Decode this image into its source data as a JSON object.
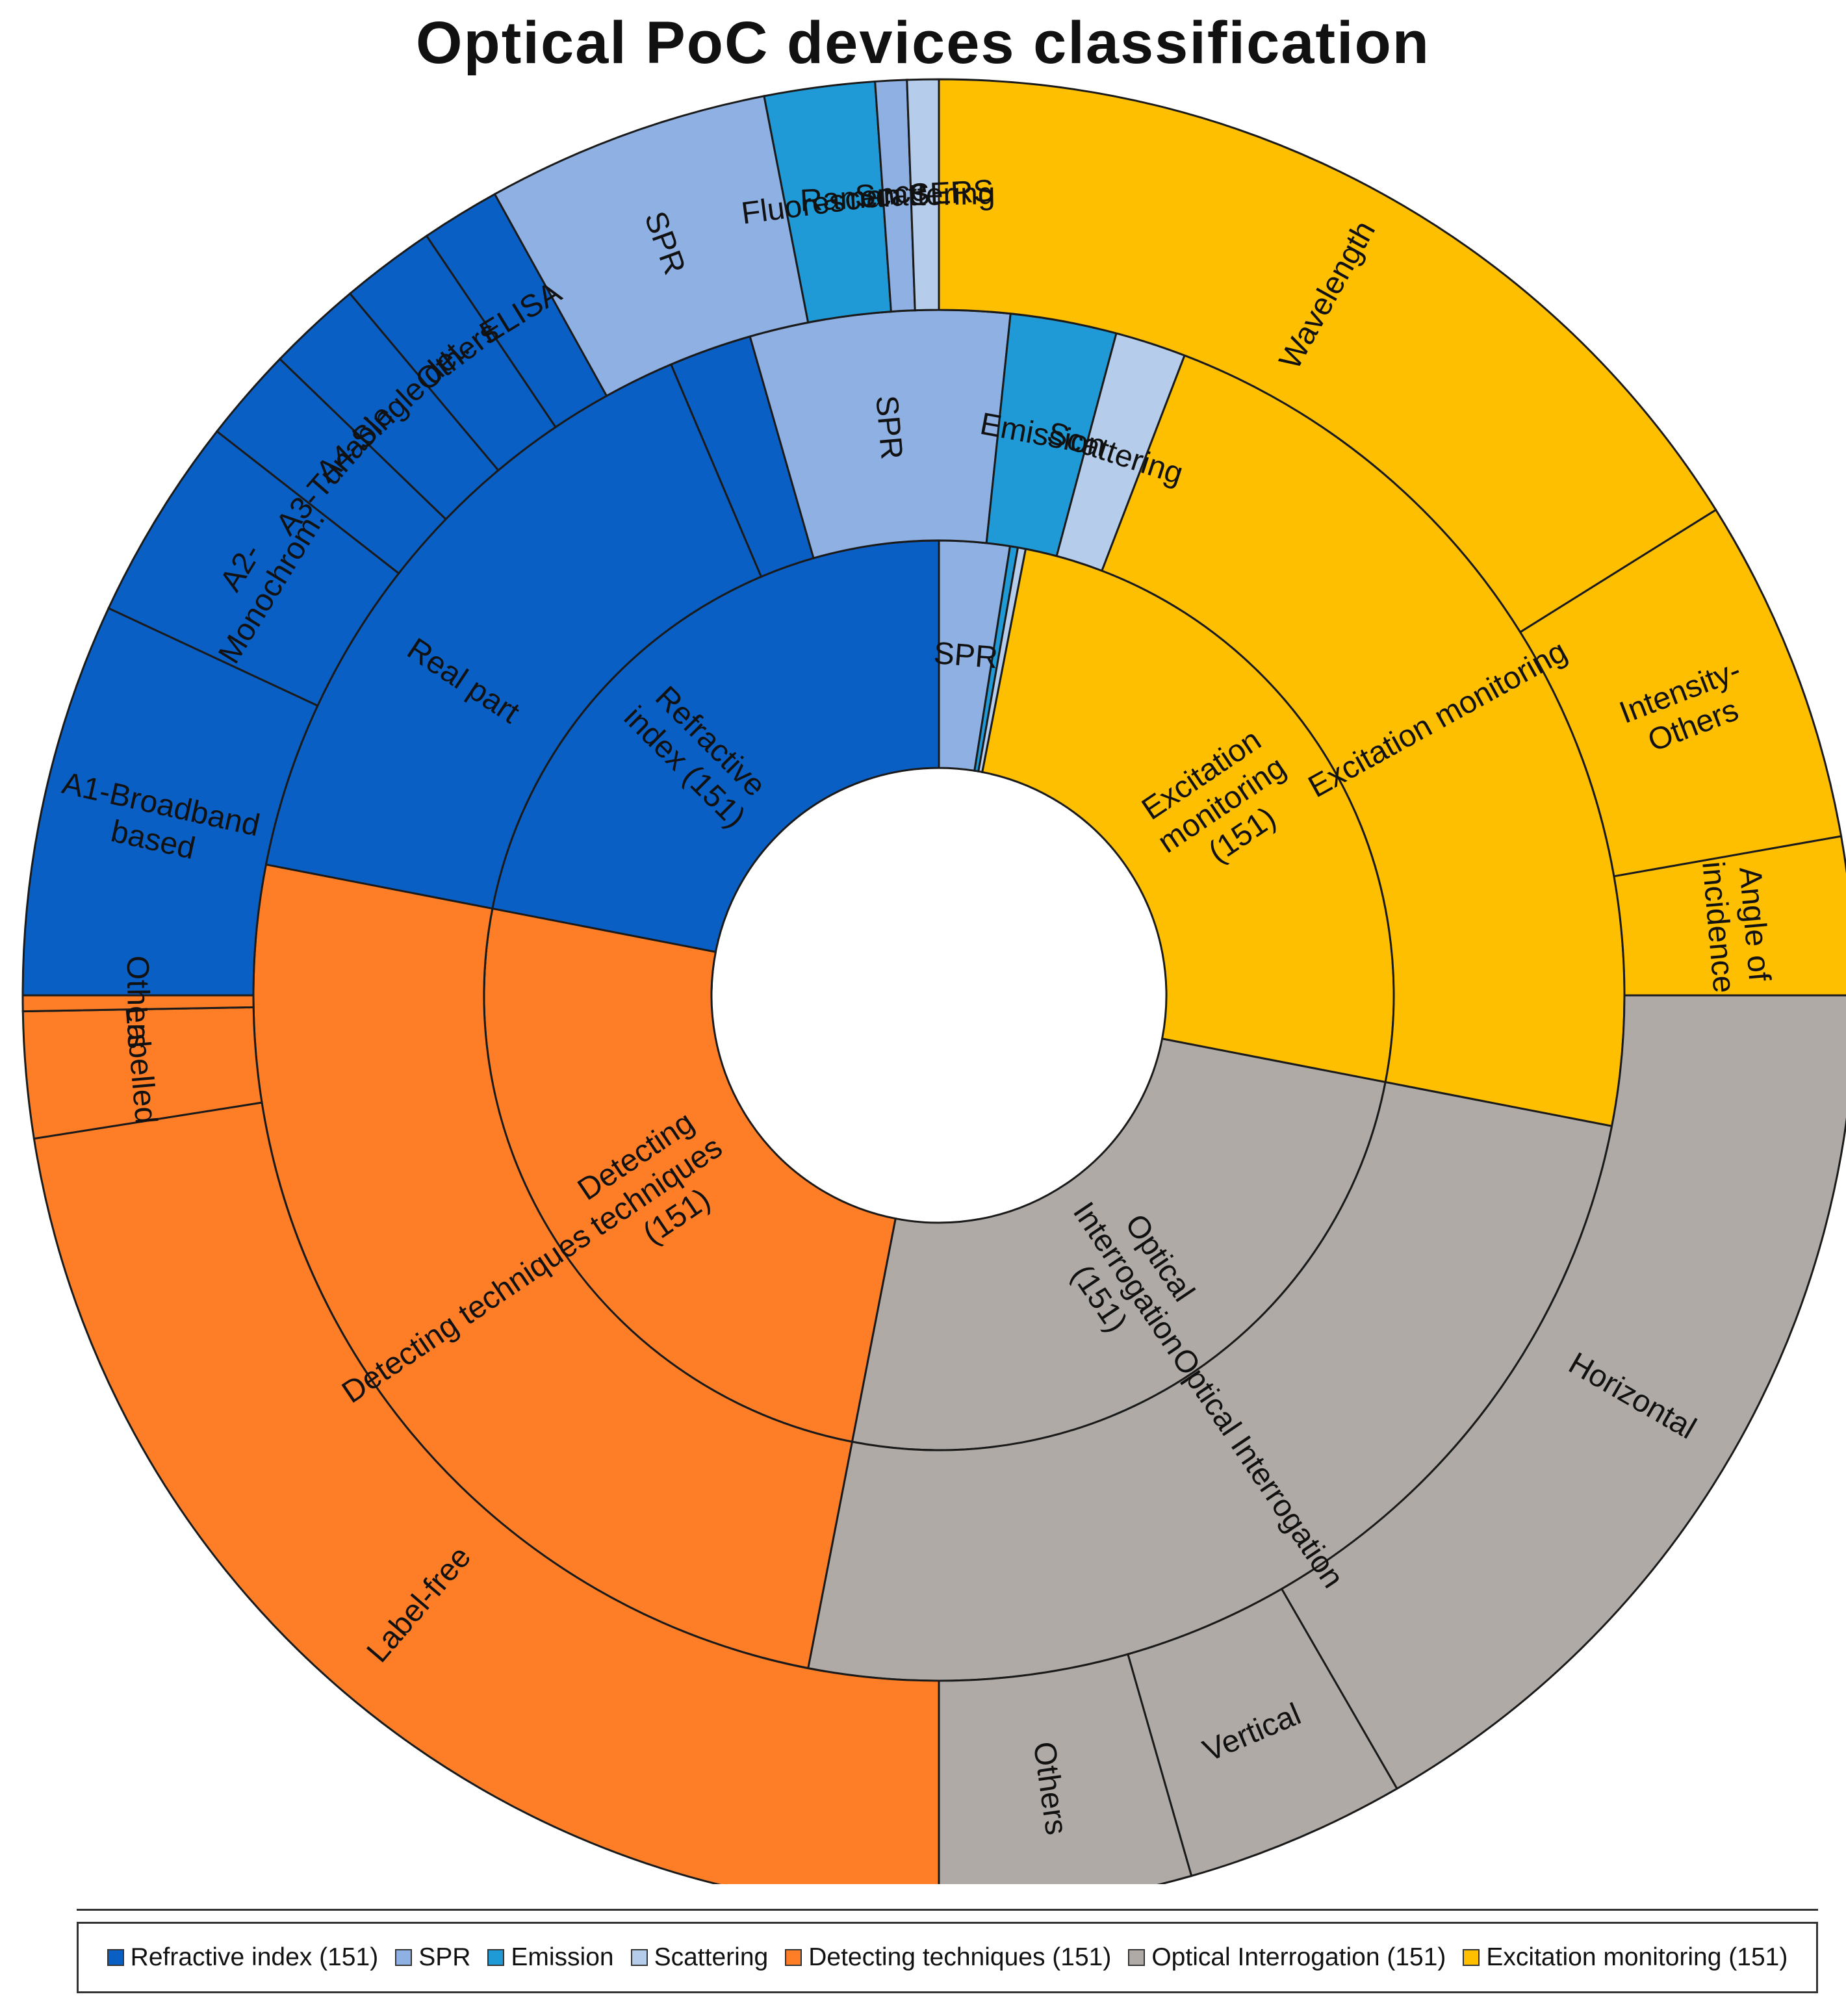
{
  "chart_data": {
    "type": "sunburst",
    "title": "Optical PoC devices classification",
    "rings": [
      {
        "level": 1,
        "segments": [
          {
            "label": "Refractive\nindex (151)",
            "start_deg": 0,
            "end_deg": 90,
            "color": "#0a5fc4"
          },
          {
            "label": "SPR",
            "start_deg": 90,
            "end_deg": 99,
            "color": "#8eb0e2"
          },
          {
            "label": "",
            "start_deg": 99,
            "end_deg": 100,
            "color": "#1f9ad6"
          },
          {
            "label": "",
            "start_deg": 100,
            "end_deg": 101,
            "color": "#b5cdeb"
          },
          {
            "label": "Excitation\nmonitoring\n(151)",
            "start_deg": 101,
            "end_deg": 191,
            "color": "#fdbf00"
          },
          {
            "label": "Optical\nInterrogation\n(151)",
            "start_deg": 191,
            "end_deg": 281,
            "color": "#afaaa6"
          },
          {
            "label": "Detecting\ntechniques\n(151)",
            "start_deg": 281,
            "end_deg": 371,
            "color": "#fd7e27"
          }
        ]
      },
      {
        "level": 2,
        "segments": [
          {
            "label": "Real part",
            "start_deg": 0,
            "end_deg": 67,
            "color": "#0a5fc4"
          },
          {
            "label": "",
            "start_deg": 67,
            "end_deg": 74,
            "color": "#0a5fc4"
          },
          {
            "label": "SPR",
            "start_deg": 74,
            "end_deg": 96,
            "color": "#8eb0e2"
          },
          {
            "label": "Emission",
            "start_deg": 96,
            "end_deg": 105,
            "color": "#1f9ad6"
          },
          {
            "label": "Scattering",
            "start_deg": 105,
            "end_deg": 111,
            "color": "#b5cdeb"
          },
          {
            "label": "Excitation monitoring",
            "start_deg": 111,
            "end_deg": 191,
            "color": "#fdbf00"
          },
          {
            "label": "Optical Interrogation",
            "start_deg": 191,
            "end_deg": 281,
            "color": "#afaaa6"
          },
          {
            "label": "Detecting techniques",
            "start_deg": 281,
            "end_deg": 371,
            "color": "#fd7e27"
          }
        ]
      },
      {
        "level": 3,
        "segments": [
          {
            "label": "A1-Broadband\nbased",
            "start_deg": 0,
            "end_deg": 25,
            "color": "#0a5fc4"
          },
          {
            "label": "A2-\nMonochrom.",
            "start_deg": 25,
            "end_deg": 38,
            "color": "#0a5fc4"
          },
          {
            "label": "A3-Tunable",
            "start_deg": 38,
            "end_deg": 44,
            "color": "#0a5fc4"
          },
          {
            "label": "A4-Single det.",
            "start_deg": 44,
            "end_deg": 50,
            "color": "#0a5fc4"
          },
          {
            "label": "Others",
            "start_deg": 50,
            "end_deg": 56,
            "color": "#0a5fc4"
          },
          {
            "label": "ELISA",
            "start_deg": 56,
            "end_deg": 61,
            "color": "#0a5fc4"
          },
          {
            "label": "SPR",
            "start_deg": 61,
            "end_deg": 79,
            "color": "#8eb0e2"
          },
          {
            "label": "Fluorescence",
            "start_deg": 79,
            "end_deg": 86,
            "color": "#1f9ad6"
          },
          {
            "label": "Raman SERS",
            "start_deg": 86,
            "end_deg": 88,
            "color": "#8eb0e2"
          },
          {
            "label": "Scattering",
            "start_deg": 88,
            "end_deg": 90,
            "color": "#b5cdeb"
          },
          {
            "label": "Wavelength",
            "start_deg": 90,
            "end_deg": 148,
            "color": "#fdbf00"
          },
          {
            "label": "Intensity-\nOthers",
            "start_deg": 148,
            "end_deg": 170,
            "color": "#fdbf00"
          },
          {
            "label": "Angle  of\nincidence",
            "start_deg": 170,
            "end_deg": 180,
            "color": "#fdbf00"
          },
          {
            "label": "Horizontal",
            "start_deg": 180,
            "end_deg": 240,
            "color": "#afaaa6"
          },
          {
            "label": "Vertical",
            "start_deg": 240,
            "end_deg": 254,
            "color": "#afaaa6"
          },
          {
            "label": "Others",
            "start_deg": 254,
            "end_deg": 270,
            "color": "#afaaa6"
          },
          {
            "label": "Label-free",
            "start_deg": 270,
            "end_deg": 351,
            "color": "#fd7e27"
          },
          {
            "label": "Labelled",
            "start_deg": 351,
            "end_deg": 359,
            "color": "#fd7e27"
          },
          {
            "label": "Others",
            "start_deg": 359,
            "end_deg": 360,
            "color": "#fd7e27"
          }
        ]
      }
    ],
    "legend": {
      "placement": "bottom",
      "entries": [
        {
          "label": "Refractive index (151)",
          "color": "#0a5fc4"
        },
        {
          "label": "SPR",
          "color": "#8eb0e2"
        },
        {
          "label": "Emission",
          "color": "#1f9ad6"
        },
        {
          "label": "Scattering",
          "color": "#b5cdeb"
        },
        {
          "label": "Detecting techniques (151)",
          "color": "#fd7e27"
        },
        {
          "label": "Optical Interrogation (151)",
          "color": "#afaaa6"
        },
        {
          "label": "Excitation monitoring (151)",
          "color": "#fdbf00"
        }
      ]
    }
  }
}
